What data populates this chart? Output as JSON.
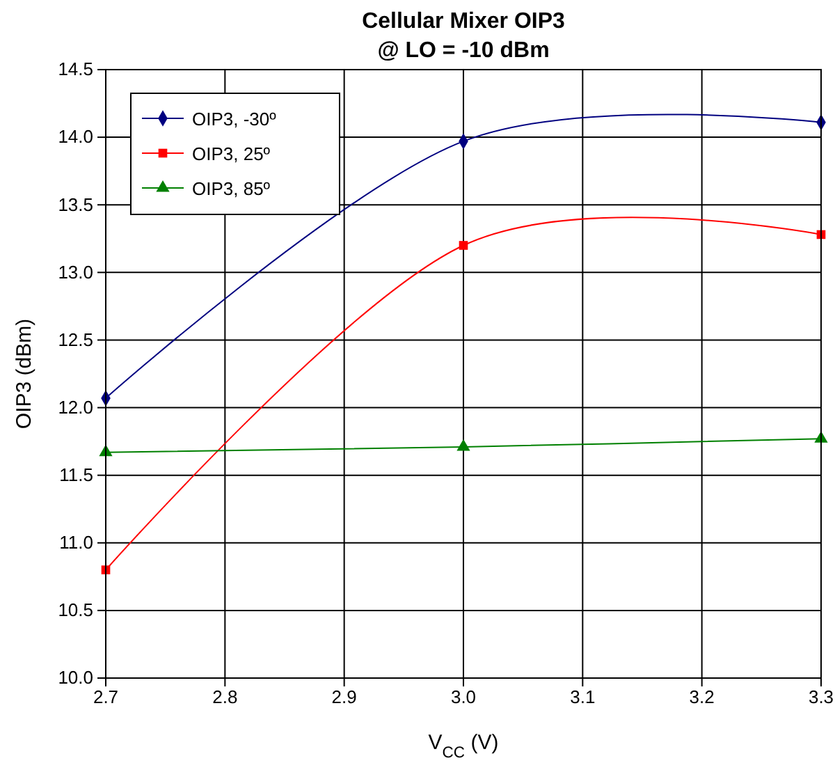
{
  "chart_data": {
    "type": "line",
    "title": "Cellular Mixer OIP3",
    "subtitle": "@ LO = -10 dBm",
    "xlabel": "V$_{CC}$ (V)",
    "ylabel": "OIP3 (dBm)",
    "x": [
      2.7,
      3.0,
      3.3
    ],
    "series": [
      {
        "name": "OIP3, -30º",
        "color": "#000080",
        "marker": "diamond",
        "values": [
          12.07,
          13.97,
          14.11
        ]
      },
      {
        "name": "OIP3, 25º",
        "color": "#ff0000",
        "marker": "square",
        "values": [
          10.8,
          13.2,
          13.28
        ]
      },
      {
        "name": "OIP3, 85º",
        "color": "#008000",
        "marker": "triangle",
        "values": [
          11.67,
          11.71,
          11.77
        ]
      }
    ],
    "xlim": [
      2.7,
      3.3
    ],
    "xticks": [
      2.7,
      2.8,
      2.9,
      {
        "value": 3,
        "label": "3.0"
      },
      3.1,
      3.2,
      3.3
    ],
    "ylim": [
      10,
      14.5
    ],
    "yticks": [
      {
        "value": 10,
        "label": "10.0"
      },
      10.5,
      {
        "value": 11,
        "label": "11.0"
      },
      11.5,
      {
        "value": 12,
        "label": "12.0"
      },
      12.5,
      {
        "value": 13,
        "label": "13.0"
      },
      13.5,
      {
        "value": 14,
        "label": "14.0"
      },
      14.5
    ],
    "grid": true,
    "legend": "top left",
    "line_style": "solid"
  }
}
